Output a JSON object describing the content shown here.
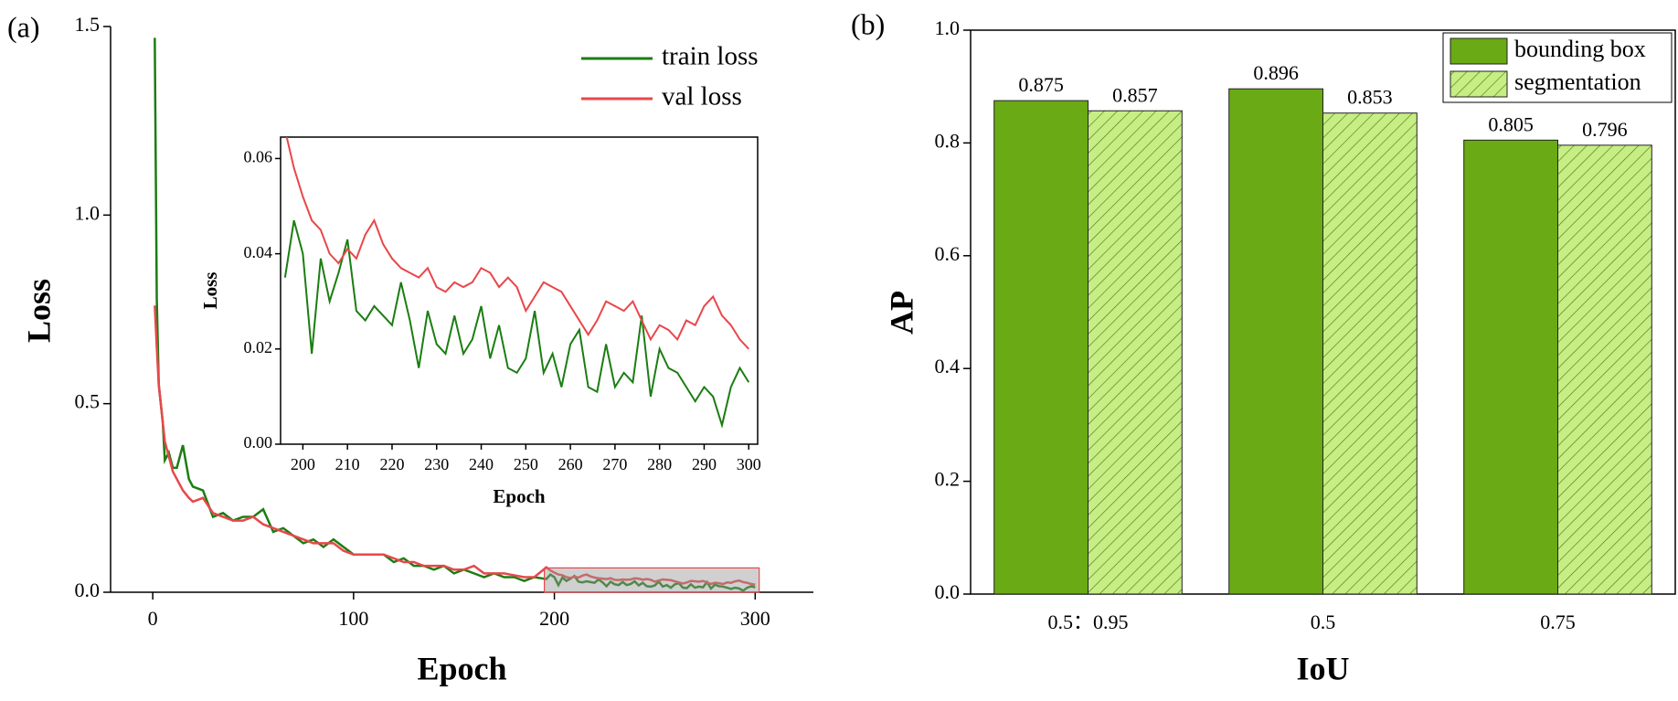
{
  "chart_data": [
    {
      "type": "line",
      "panel_label": "(a)",
      "xlabel": "Epoch",
      "ylabel": "Loss",
      "xlim": [
        -21,
        329
      ],
      "ylim": [
        0,
        1.5
      ],
      "xticks": [
        0,
        100,
        200,
        300
      ],
      "yticks": [
        {
          "value": 0,
          "label": "0.0"
        },
        0.5,
        {
          "value": 1,
          "label": "1.0"
        },
        1.5
      ],
      "legend": "upper right",
      "x": [
        1,
        2,
        3,
        5,
        6,
        8,
        10,
        12,
        15,
        18,
        20,
        25,
        30,
        35,
        40,
        45,
        50,
        55,
        60,
        65,
        70,
        75,
        80,
        85,
        90,
        95,
        100,
        105,
        110,
        115,
        120,
        125,
        130,
        135,
        140,
        145,
        150,
        155,
        160,
        165,
        170,
        175,
        180,
        185,
        190,
        196,
        198,
        200,
        202,
        204,
        206,
        208,
        210,
        212,
        214,
        216,
        218,
        220,
        222,
        224,
        226,
        228,
        230,
        232,
        234,
        236,
        238,
        240,
        242,
        244,
        246,
        248,
        250,
        252,
        254,
        256,
        258,
        260,
        262,
        264,
        266,
        268,
        270,
        272,
        274,
        276,
        278,
        280,
        282,
        284,
        286,
        288,
        290,
        292,
        294,
        296,
        298,
        300
      ],
      "series": [
        {
          "name": "train loss",
          "color": "#1b7d12",
          "values": [
            1.47,
            0.78,
            0.55,
            0.45,
            0.35,
            0.37,
            0.33,
            0.33,
            0.39,
            0.3,
            0.28,
            0.27,
            0.2,
            0.21,
            0.19,
            0.2,
            0.2,
            0.22,
            0.16,
            0.17,
            0.15,
            0.13,
            0.14,
            0.12,
            0.14,
            0.12,
            0.1,
            0.1,
            0.1,
            0.1,
            0.08,
            0.09,
            0.07,
            0.07,
            0.06,
            0.07,
            0.05,
            0.06,
            0.05,
            0.04,
            0.05,
            0.04,
            0.04,
            0.03,
            0.04,
            0.035,
            0.047,
            0.04,
            0.019,
            0.039,
            0.03,
            0.036,
            0.043,
            0.028,
            0.026,
            0.029,
            0.027,
            0.025,
            0.034,
            0.026,
            0.016,
            0.028,
            0.021,
            0.019,
            0.027,
            0.019,
            0.022,
            0.029,
            0.018,
            0.025,
            0.016,
            0.015,
            0.018,
            0.028,
            0.015,
            0.019,
            0.012,
            0.021,
            0.024,
            0.012,
            0.011,
            0.021,
            0.012,
            0.015,
            0.013,
            0.027,
            0.01,
            0.02,
            0.016,
            0.015,
            0.012,
            0.009,
            0.012,
            0.01,
            0.004,
            0.012,
            0.016,
            0.013
          ]
        },
        {
          "name": "val loss",
          "color": "#e8474a",
          "values": [
            0.76,
            0.65,
            0.55,
            0.45,
            0.4,
            0.36,
            0.32,
            0.3,
            0.27,
            0.25,
            0.24,
            0.25,
            0.21,
            0.2,
            0.19,
            0.19,
            0.2,
            0.18,
            0.17,
            0.16,
            0.15,
            0.14,
            0.13,
            0.13,
            0.13,
            0.11,
            0.1,
            0.1,
            0.1,
            0.1,
            0.09,
            0.08,
            0.08,
            0.07,
            0.07,
            0.07,
            0.06,
            0.06,
            0.07,
            0.05,
            0.05,
            0.05,
            0.045,
            0.04,
            0.04,
            0.066,
            0.058,
            0.052,
            0.047,
            0.045,
            0.04,
            0.038,
            0.041,
            0.039,
            0.044,
            0.047,
            0.042,
            0.039,
            0.037,
            0.036,
            0.035,
            0.037,
            0.033,
            0.032,
            0.034,
            0.033,
            0.034,
            0.037,
            0.036,
            0.033,
            0.035,
            0.033,
            0.028,
            0.031,
            0.034,
            0.033,
            0.032,
            0.029,
            0.026,
            0.023,
            0.026,
            0.03,
            0.029,
            0.028,
            0.03,
            0.026,
            0.022,
            0.025,
            0.024,
            0.022,
            0.026,
            0.025,
            0.029,
            0.031,
            0.027,
            0.025,
            0.022,
            0.02
          ]
        }
      ],
      "inset": {
        "xlabel": "Epoch",
        "ylabel": "Loss",
        "xlim": [
          195,
          302
        ],
        "ylim": [
          0,
          0.0645
        ],
        "xticks": [
          200,
          210,
          220,
          230,
          240,
          250,
          260,
          270,
          280,
          290,
          300
        ],
        "yticks": [
          {
            "value": 0,
            "label": "0.00"
          },
          {
            "value": 0.02,
            "label": "0.02"
          },
          {
            "value": 0.04,
            "label": "0.04"
          },
          {
            "value": 0.06,
            "label": "0.06"
          }
        ]
      }
    },
    {
      "type": "bar",
      "panel_label": "(b)",
      "xlabel": "IoU",
      "ylabel": "AP",
      "categories": [
        "0.5：0.95",
        "0.5",
        "0.75"
      ],
      "ylim": [
        0,
        1.0
      ],
      "yticks": [
        {
          "value": 0,
          "label": "0.0"
        },
        0.2,
        0.4,
        0.6,
        0.8,
        {
          "value": 1,
          "label": "1.0"
        }
      ],
      "legend": "upper right",
      "series": [
        {
          "name": "bounding box",
          "color": "#6aaa14",
          "hatch": false,
          "values": [
            0.875,
            0.896,
            0.805
          ]
        },
        {
          "name": "segmentation",
          "color": "#c6ee84",
          "hatch": true,
          "values": [
            0.857,
            0.853,
            0.796
          ]
        }
      ]
    }
  ]
}
